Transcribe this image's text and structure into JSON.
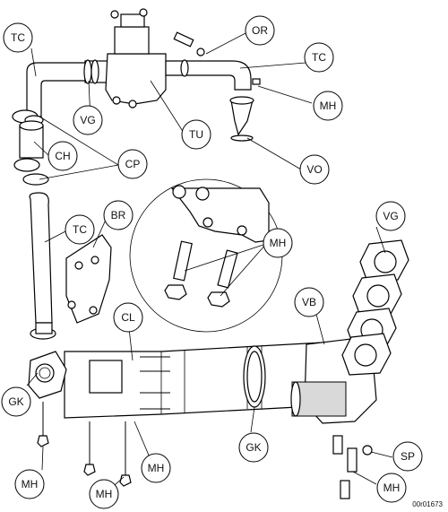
{
  "callouts": [
    {
      "id": "tc_top_left",
      "label": "TC"
    },
    {
      "id": "or",
      "label": "OR"
    },
    {
      "id": "tc_top_right",
      "label": "TC"
    },
    {
      "id": "mh_top_right",
      "label": "MH"
    },
    {
      "id": "vg_top",
      "label": "VG"
    },
    {
      "id": "tu",
      "label": "TU"
    },
    {
      "id": "ch",
      "label": "CH"
    },
    {
      "id": "cp",
      "label": "CP"
    },
    {
      "id": "vo",
      "label": "VO"
    },
    {
      "id": "tc_mid",
      "label": "TC"
    },
    {
      "id": "br",
      "label": "BR"
    },
    {
      "id": "mh_detail",
      "label": "MH"
    },
    {
      "id": "vg_right",
      "label": "VG"
    },
    {
      "id": "cl",
      "label": "CL"
    },
    {
      "id": "vb",
      "label": "VB"
    },
    {
      "id": "gk_left",
      "label": "GK"
    },
    {
      "id": "gk_bottom",
      "label": "GK"
    },
    {
      "id": "sp",
      "label": "SP"
    },
    {
      "id": "mh_bottom_left",
      "label": "MH"
    },
    {
      "id": "mh_bottom_mid",
      "label": "MH"
    },
    {
      "id": "mh_bottom_center",
      "label": "MH"
    },
    {
      "id": "mh_bottom_right",
      "label": "MH"
    }
  ],
  "reference_number": "00r01673"
}
